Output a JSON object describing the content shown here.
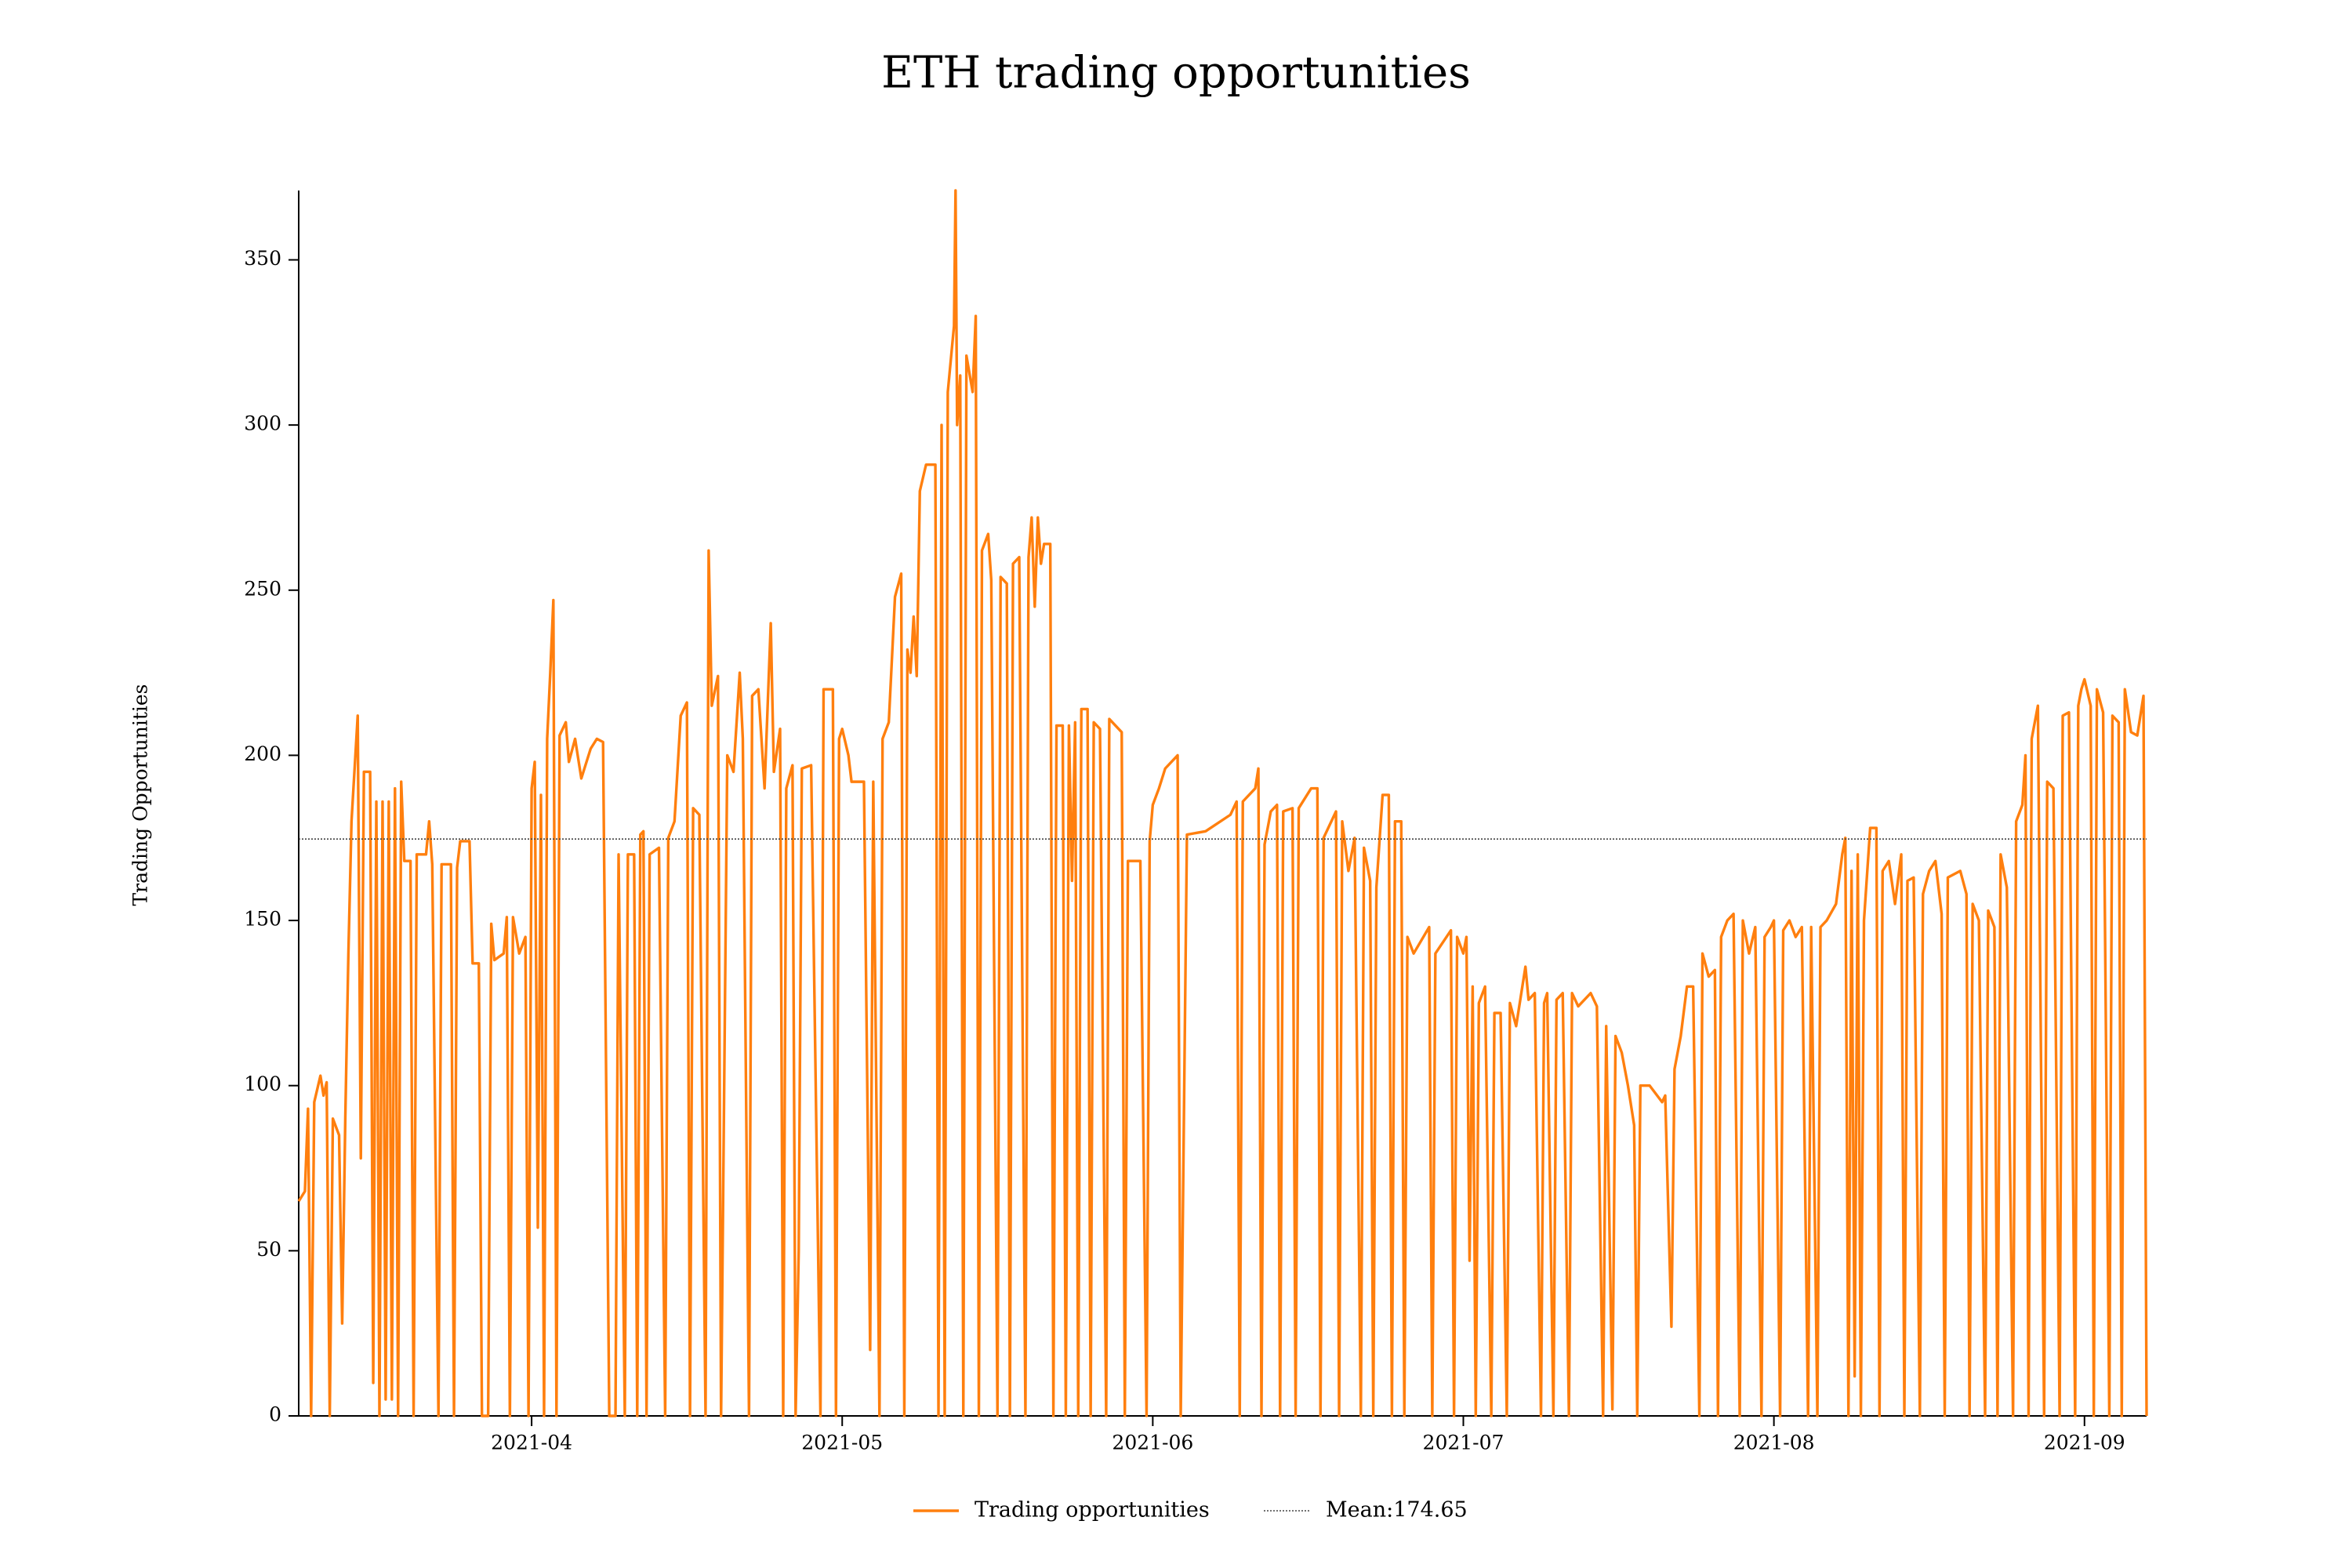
{
  "chart_data": {
    "type": "line",
    "title": "ETH trading opportunities",
    "y_label": "Trading Opportunities",
    "x": [
      3.25,
      3.27,
      3.28,
      3.29,
      3.3,
      3.32,
      3.33,
      3.34,
      3.35,
      3.36,
      3.38,
      3.39,
      3.4,
      3.41,
      3.42,
      3.44,
      3.45,
      3.46,
      3.48,
      3.49,
      3.5,
      3.51,
      3.52,
      3.53,
      3.54,
      3.55,
      3.56,
      3.57,
      3.58,
      3.59,
      3.61,
      3.62,
      3.63,
      3.66,
      3.67,
      3.68,
      3.7,
      3.71,
      3.74,
      3.75,
      3.76,
      3.77,
      3.8,
      3.81,
      3.83,
      3.84,
      3.86,
      3.87,
      3.88,
      3.91,
      3.92,
      3.93,
      3.94,
      3.96,
      3.98,
      3.99,
      4.0,
      4.01,
      4.02,
      4.03,
      4.04,
      4.05,
      4.06,
      4.07,
      4.08,
      4.09,
      4.11,
      4.12,
      4.14,
      4.16,
      4.19,
      4.21,
      4.23,
      4.25,
      4.27,
      4.28,
      4.3,
      4.31,
      4.33,
      4.34,
      4.35,
      4.36,
      4.37,
      4.38,
      4.41,
      4.43,
      4.44,
      4.46,
      4.48,
      4.5,
      4.51,
      4.52,
      4.54,
      4.56,
      4.57,
      4.58,
      4.6,
      4.61,
      4.63,
      4.65,
      4.67,
      4.68,
      4.7,
      4.71,
      4.73,
      4.75,
      4.77,
      4.78,
      4.8,
      4.81,
      4.82,
      4.84,
      4.85,
      4.86,
      4.87,
      4.9,
      4.93,
      4.94,
      4.97,
      4.98,
      4.99,
      5.0,
      5.02,
      5.03,
      5.07,
      5.09,
      5.1,
      5.12,
      5.13,
      5.15,
      5.17,
      5.19,
      5.2,
      5.21,
      5.22,
      5.23,
      5.24,
      5.25,
      5.27,
      5.3,
      5.31,
      5.32,
      5.33,
      5.34,
      5.35,
      5.36,
      5.365,
      5.37,
      5.38,
      5.39,
      5.4,
      5.42,
      5.43,
      5.44,
      5.45,
      5.47,
      5.48,
      5.5,
      5.51,
      5.53,
      5.54,
      5.55,
      5.57,
      5.59,
      5.6,
      5.61,
      5.62,
      5.63,
      5.64,
      5.65,
      5.67,
      5.68,
      5.69,
      5.71,
      5.72,
      5.73,
      5.74,
      5.75,
      5.76,
      5.77,
      5.79,
      5.8,
      5.81,
      5.83,
      5.85,
      5.86,
      5.9,
      5.91,
      5.92,
      5.96,
      5.98,
      5.99,
      6.0,
      6.02,
      6.04,
      6.08,
      6.09,
      6.11,
      6.17,
      6.25,
      6.27,
      6.28,
      6.29,
      6.33,
      6.34,
      6.35,
      6.36,
      6.38,
      6.4,
      6.41,
      6.42,
      6.45,
      6.46,
      6.47,
      6.51,
      6.53,
      6.54,
      6.55,
      6.59,
      6.6,
      6.61,
      6.63,
      6.65,
      6.67,
      6.68,
      6.7,
      6.71,
      6.72,
      6.74,
      6.76,
      6.77,
      6.78,
      6.8,
      6.81,
      6.82,
      6.84,
      6.89,
      6.9,
      6.91,
      6.96,
      6.97,
      6.98,
      7.0,
      7.01,
      7.02,
      7.03,
      7.04,
      7.05,
      7.07,
      7.09,
      7.1,
      7.12,
      7.14,
      7.15,
      7.17,
      7.19,
      7.2,
      7.21,
      7.23,
      7.25,
      7.26,
      7.27,
      7.29,
      7.3,
      7.32,
      7.34,
      7.35,
      7.37,
      7.41,
      7.43,
      7.45,
      7.46,
      7.48,
      7.49,
      7.51,
      7.53,
      7.55,
      7.56,
      7.57,
      7.6,
      7.64,
      7.65,
      7.67,
      7.68,
      7.7,
      7.72,
      7.74,
      7.76,
      7.77,
      7.79,
      7.81,
      7.82,
      7.83,
      7.85,
      7.87,
      7.89,
      7.9,
      7.92,
      7.94,
      7.96,
      7.97,
      7.99,
      8.0,
      8.02,
      8.03,
      8.05,
      8.07,
      8.09,
      8.11,
      8.12,
      8.14,
      8.15,
      8.17,
      8.2,
      8.22,
      8.23,
      8.24,
      8.25,
      8.26,
      8.27,
      8.28,
      8.29,
      8.31,
      8.33,
      8.34,
      8.35,
      8.37,
      8.39,
      8.41,
      8.42,
      8.43,
      8.45,
      8.47,
      8.48,
      8.5,
      8.52,
      8.54,
      8.55,
      8.56,
      8.6,
      8.62,
      8.63,
      8.64,
      8.66,
      8.68,
      8.69,
      8.71,
      8.72,
      8.73,
      8.75,
      8.77,
      8.78,
      8.8,
      8.81,
      8.82,
      8.83,
      8.85,
      8.87,
      8.88,
      8.9,
      8.92,
      8.93,
      8.95,
      8.97,
      8.98,
      8.99,
      9.0,
      9.02,
      9.03,
      9.04,
      9.06,
      9.08,
      9.09,
      9.11,
      9.12,
      9.13,
      9.15,
      9.17,
      9.19,
      9.2
    ],
    "series": [
      {
        "name": "Trading opportunities",
        "color": "#ff7f0e",
        "values": [
          65,
          68,
          93,
          0,
          95,
          103,
          97,
          101,
          0,
          90,
          85,
          28,
          90,
          140,
          180,
          212,
          78,
          195,
          195,
          10,
          186,
          0,
          186,
          5,
          186,
          5,
          190,
          0,
          192,
          168,
          168,
          0,
          170,
          170,
          180,
          167,
          0,
          167,
          167,
          0,
          166,
          174,
          174,
          137,
          137,
          0,
          0,
          149,
          138,
          140,
          151,
          0,
          151,
          140,
          145,
          0,
          190,
          198,
          57,
          188,
          0,
          205,
          225,
          247,
          0,
          206,
          210,
          198,
          205,
          193,
          202,
          205,
          204,
          0,
          0,
          170,
          0,
          170,
          170,
          0,
          176,
          177,
          0,
          170,
          172,
          0,
          175,
          180,
          212,
          216,
          0,
          184,
          182,
          0,
          262,
          215,
          224,
          0,
          200,
          195,
          225,
          205,
          0,
          218,
          220,
          190,
          240,
          195,
          208,
          0,
          190,
          197,
          0,
          50,
          196,
          197,
          0,
          220,
          220,
          0,
          205,
          208,
          200,
          192,
          192,
          20,
          192,
          0,
          205,
          210,
          248,
          255,
          0,
          232,
          225,
          242,
          224,
          280,
          288,
          288,
          0,
          300,
          0,
          310,
          320,
          330,
          371,
          300,
          315,
          0,
          321,
          310,
          333,
          0,
          262,
          267,
          253,
          0,
          254,
          252,
          0,
          258,
          260,
          0,
          260,
          272,
          245,
          272,
          258,
          264,
          264,
          0,
          209,
          209,
          0,
          209,
          162,
          210,
          0,
          214,
          214,
          0,
          210,
          208,
          0,
          211,
          207,
          0,
          168,
          168,
          0,
          174,
          185,
          190,
          196,
          200,
          0,
          176,
          177,
          182,
          186,
          0,
          186,
          190,
          196,
          0,
          173,
          183,
          185,
          0,
          183,
          184,
          0,
          184,
          190,
          190,
          0,
          175,
          183,
          0,
          180,
          165,
          175,
          0,
          172,
          162,
          0,
          160,
          188,
          188,
          0,
          180,
          180,
          0,
          145,
          140,
          148,
          0,
          140,
          147,
          0,
          145,
          140,
          145,
          47,
          130,
          0,
          125,
          130,
          0,
          122,
          122,
          0,
          125,
          118,
          130,
          136,
          126,
          128,
          0,
          125,
          128,
          0,
          126,
          128,
          0,
          128,
          124,
          128,
          124,
          0,
          118,
          2,
          115,
          110,
          100,
          88,
          0,
          100,
          100,
          95,
          97,
          27,
          105,
          115,
          130,
          130,
          0,
          140,
          133,
          135,
          0,
          145,
          150,
          152,
          0,
          150,
          140,
          148,
          0,
          145,
          148,
          150,
          0,
          147,
          150,
          145,
          148,
          0,
          148,
          0,
          148,
          150,
          155,
          170,
          175,
          0,
          165,
          12,
          170,
          0,
          150,
          178,
          178,
          0,
          165,
          168,
          155,
          170,
          0,
          162,
          163,
          0,
          158,
          165,
          168,
          152,
          0,
          163,
          165,
          158,
          0,
          155,
          150,
          0,
          153,
          148,
          0,
          170,
          160,
          0,
          180,
          185,
          200,
          0,
          205,
          215,
          0,
          192,
          190,
          0,
          212,
          213,
          0,
          215,
          220,
          223,
          215,
          0,
          220,
          213,
          0,
          212,
          210,
          0,
          220,
          207,
          206,
          218,
          0
        ]
      }
    ],
    "mean": {
      "value": 174.65,
      "label": "Mean:174.65",
      "color": "#444444"
    },
    "xlim": [
      3.25,
      9.2
    ],
    "xticks": [
      {
        "value": 4,
        "label": "2021-04"
      },
      {
        "value": 5,
        "label": "2021-05"
      },
      {
        "value": 6,
        "label": "2021-06"
      },
      {
        "value": 7,
        "label": "2021-07"
      },
      {
        "value": 8,
        "label": "2021-08"
      },
      {
        "value": 9,
        "label": "2021-09"
      }
    ],
    "ylim": [
      0,
      371
    ],
    "yticks": [
      0,
      50,
      100,
      150,
      200,
      250,
      300,
      350
    ],
    "grid": false,
    "legend": "bottom"
  }
}
